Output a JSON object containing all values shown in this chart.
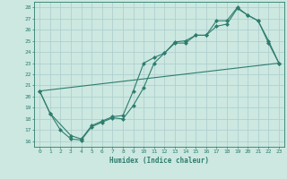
{
  "background_color": "#cce8e0",
  "grid_color": "#aacccc",
  "line_color": "#2e7d6e",
  "xlabel": "Humidex (Indice chaleur)",
  "xlim": [
    -0.5,
    23.5
  ],
  "ylim": [
    15.5,
    28.5
  ],
  "xticks": [
    0,
    1,
    2,
    3,
    4,
    5,
    6,
    7,
    8,
    9,
    10,
    11,
    12,
    13,
    14,
    15,
    16,
    17,
    18,
    19,
    20,
    21,
    22,
    23
  ],
  "yticks": [
    16,
    17,
    18,
    19,
    20,
    21,
    22,
    23,
    24,
    25,
    26,
    27,
    28
  ],
  "series1_x": [
    0,
    1,
    2,
    3,
    4,
    5,
    6,
    7,
    8,
    9,
    10,
    11,
    12,
    13,
    14,
    15,
    16,
    17,
    18,
    19,
    20,
    21,
    22,
    23
  ],
  "series1_y": [
    20.5,
    18.5,
    17.0,
    16.2,
    16.1,
    17.3,
    17.7,
    18.1,
    18.0,
    19.2,
    20.8,
    23.0,
    23.9,
    24.8,
    24.8,
    25.5,
    25.5,
    26.3,
    26.5,
    27.9,
    27.3,
    26.8,
    24.8,
    23.0
  ],
  "series2_x": [
    0,
    1,
    3,
    4,
    5,
    6,
    7,
    8,
    9,
    10,
    11,
    12,
    13,
    14,
    15,
    16,
    17,
    18,
    19,
    20,
    21,
    22,
    23
  ],
  "series2_y": [
    20.5,
    18.5,
    16.5,
    16.2,
    17.4,
    17.8,
    18.2,
    18.3,
    20.5,
    23.0,
    23.5,
    23.9,
    24.9,
    25.0,
    25.5,
    25.5,
    26.8,
    26.8,
    28.0,
    27.3,
    26.8,
    25.0,
    23.0
  ],
  "series3_x": [
    0,
    23
  ],
  "series3_y": [
    20.5,
    23.0
  ]
}
